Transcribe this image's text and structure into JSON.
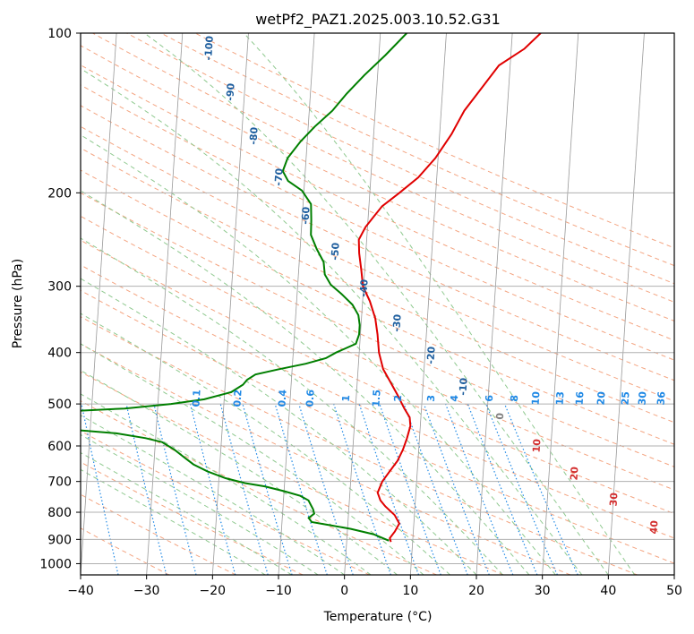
{
  "chart_data": {
    "type": "line",
    "title": "wetPf2_PAZ1.2025.003.10.52.G31",
    "xlabel": "Temperature (°C)",
    "ylabel": "Pressure (hPa)",
    "xlim": [
      -40,
      50
    ],
    "ylim": [
      1050,
      100
    ],
    "y_scale": "log",
    "grid": true,
    "x_ticks": [
      -40,
      -30,
      -20,
      -10,
      0,
      10,
      20,
      30,
      40,
      50
    ],
    "y_ticks": [
      100,
      200,
      300,
      400,
      500,
      600,
      700,
      800,
      900,
      1000
    ],
    "series": [
      {
        "color": "#e00000",
        "points": [
          [
            6.7,
            910
          ],
          [
            6.5,
            895
          ],
          [
            7.2,
            870
          ],
          [
            7.8,
            840
          ],
          [
            7.0,
            810
          ],
          [
            5.5,
            780
          ],
          [
            4.7,
            760
          ],
          [
            4.2,
            735
          ],
          [
            4.8,
            700
          ],
          [
            5.8,
            670
          ],
          [
            6.9,
            640
          ],
          [
            7.6,
            610
          ],
          [
            8.1,
            580
          ],
          [
            8.5,
            550
          ],
          [
            8.3,
            530
          ],
          [
            7.4,
            510
          ],
          [
            6.2,
            480
          ],
          [
            4.8,
            450
          ],
          [
            3.8,
            430
          ],
          [
            3.0,
            400
          ],
          [
            2.6,
            370
          ],
          [
            2.1,
            345
          ],
          [
            1.1,
            320
          ],
          [
            -0.1,
            300
          ],
          [
            -0.5,
            280
          ],
          [
            -1.0,
            260
          ],
          [
            -1.2,
            245
          ],
          [
            -0.3,
            232
          ],
          [
            0.8,
            222
          ],
          [
            2.0,
            212
          ],
          [
            4.5,
            200
          ],
          [
            7.2,
            187
          ],
          [
            9.6,
            172
          ],
          [
            11.8,
            155
          ],
          [
            13.5,
            140
          ],
          [
            15.7,
            128
          ],
          [
            18.3,
            115
          ],
          [
            22.0,
            107
          ],
          [
            24.3,
            100
          ]
        ]
      },
      {
        "color": "#007f00",
        "points": [
          [
            6.4,
            905
          ],
          [
            4.0,
            880
          ],
          [
            0.5,
            860
          ],
          [
            -3.0,
            845
          ],
          [
            -5.5,
            835
          ],
          [
            -6.0,
            820
          ],
          [
            -5.2,
            805
          ],
          [
            -5.4,
            790
          ],
          [
            -5.8,
            775
          ],
          [
            -6.2,
            760
          ],
          [
            -7.5,
            745
          ],
          [
            -10.0,
            730
          ],
          [
            -13.0,
            715
          ],
          [
            -16.0,
            705
          ],
          [
            -19.0,
            690
          ],
          [
            -21.8,
            670
          ],
          [
            -24.0,
            650
          ],
          [
            -25.5,
            630
          ],
          [
            -27.0,
            610
          ],
          [
            -28.0,
            600
          ],
          [
            -29.0,
            590
          ],
          [
            -31.5,
            580
          ],
          [
            -36.0,
            568
          ],
          [
            -42.0,
            560
          ],
          [
            -42.0,
            515
          ],
          [
            -35.0,
            510
          ],
          [
            -28.0,
            500
          ],
          [
            -23.0,
            490
          ],
          [
            -19.0,
            475
          ],
          [
            -17.3,
            460
          ],
          [
            -16.7,
            450
          ],
          [
            -15.5,
            440
          ],
          [
            -12.0,
            430
          ],
          [
            -8.0,
            420
          ],
          [
            -5.0,
            410
          ],
          [
            -3.5,
            400
          ],
          [
            -0.6,
            385
          ],
          [
            -0.2,
            370
          ],
          [
            -0.2,
            355
          ],
          [
            -0.5,
            340
          ],
          [
            -1.5,
            325
          ],
          [
            -3.3,
            310
          ],
          [
            -5.0,
            298
          ],
          [
            -6.0,
            285
          ],
          [
            -6.3,
            270
          ],
          [
            -7.5,
            255
          ],
          [
            -8.5,
            240
          ],
          [
            -8.6,
            225
          ],
          [
            -8.8,
            210
          ],
          [
            -10.3,
            198
          ],
          [
            -12.5,
            190
          ],
          [
            -13.4,
            182
          ],
          [
            -12.8,
            172
          ],
          [
            -11.0,
            160
          ],
          [
            -9.0,
            150
          ],
          [
            -6.5,
            140
          ],
          [
            -4.5,
            130
          ],
          [
            -2.0,
            120
          ],
          [
            1.0,
            110
          ],
          [
            4.0,
            100
          ]
        ]
      }
    ],
    "annotations": {
      "mixing_ratio_labels": [
        "0.1",
        "0.2",
        "0.4",
        "0.6",
        "1",
        "1.5",
        "2",
        "3",
        "4",
        "6",
        "8",
        "10",
        "13",
        "16",
        "20",
        "25",
        "30",
        "36"
      ],
      "dry_adiabat_labels": [
        "-100",
        "-90",
        "-80",
        "-70",
        "-60",
        "-50",
        "-40",
        "-30",
        "-20",
        "-10"
      ],
      "moist_adiabat_labels": [
        "0",
        "10",
        "20",
        "30",
        "40"
      ]
    }
  },
  "colors": {
    "temperature": "#e00000",
    "dewpoint": "#007f00",
    "isotherm": "#999999",
    "dry_adiabat": "#f4a582",
    "moist_adiabat": "#8fc98f",
    "mixing_ratio": "#1e88e5",
    "mixing_ratio_label": "#1e88e5",
    "dry_adiabat_label": "#1f5f9f",
    "moist_adiabat_label": "#d32f2f",
    "zero_moist_label": "#808080"
  }
}
